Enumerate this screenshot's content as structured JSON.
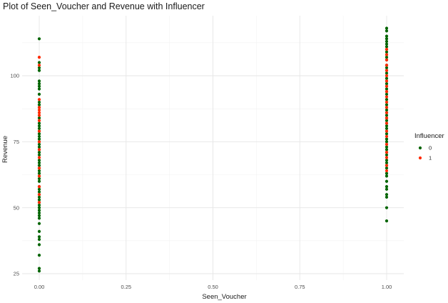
{
  "chart_data": {
    "type": "scatter",
    "title": "Plot of Seen_Voucher and Revenue with Influencer",
    "xlabel": "Seen_Voucher",
    "ylabel": "Revenue",
    "xlim": [
      0,
      1
    ],
    "ylim": [
      25,
      117
    ],
    "x_ticks": [
      "0.00",
      "0.25",
      "0.50",
      "0.75",
      "1.00"
    ],
    "y_ticks": [
      "25",
      "50",
      "75",
      "100"
    ],
    "grid": true,
    "legend": {
      "title": "Influencer",
      "position": "right"
    },
    "series": [
      {
        "name": "0",
        "color": "#006400",
        "points": [
          [
            0,
            26
          ],
          [
            0,
            27
          ],
          [
            0,
            32
          ],
          [
            0,
            36
          ],
          [
            0,
            38
          ],
          [
            0,
            39
          ],
          [
            0,
            41
          ],
          [
            0,
            44
          ],
          [
            0,
            46
          ],
          [
            0,
            47
          ],
          [
            0,
            48
          ],
          [
            0,
            49
          ],
          [
            0,
            50
          ],
          [
            0,
            51
          ],
          [
            0,
            52
          ],
          [
            0,
            53
          ],
          [
            0,
            54
          ],
          [
            0,
            55
          ],
          [
            0,
            56
          ],
          [
            0,
            57
          ],
          [
            0,
            58
          ],
          [
            0,
            60
          ],
          [
            0,
            61
          ],
          [
            0,
            62
          ],
          [
            0,
            63
          ],
          [
            0,
            64
          ],
          [
            0,
            65
          ],
          [
            0,
            66
          ],
          [
            0,
            67
          ],
          [
            0,
            68
          ],
          [
            0,
            70
          ],
          [
            0,
            71
          ],
          [
            0,
            72
          ],
          [
            0,
            73
          ],
          [
            0,
            74
          ],
          [
            0,
            75
          ],
          [
            0,
            76
          ],
          [
            0,
            77
          ],
          [
            0,
            78
          ],
          [
            0,
            79
          ],
          [
            0,
            80
          ],
          [
            0,
            81
          ],
          [
            0,
            82
          ],
          [
            0,
            84
          ],
          [
            0,
            88
          ],
          [
            0,
            89
          ],
          [
            0,
            90
          ],
          [
            0,
            93
          ],
          [
            0,
            95
          ],
          [
            0,
            96
          ],
          [
            0,
            97
          ],
          [
            0,
            98
          ],
          [
            0,
            102
          ],
          [
            0,
            103
          ],
          [
            0,
            105
          ],
          [
            0,
            114
          ],
          [
            1,
            45
          ],
          [
            1,
            50
          ],
          [
            1,
            54
          ],
          [
            1,
            55
          ],
          [
            1,
            57
          ],
          [
            1,
            58
          ],
          [
            1,
            60
          ],
          [
            1,
            62
          ],
          [
            1,
            63
          ],
          [
            1,
            65
          ],
          [
            1,
            66
          ],
          [
            1,
            67
          ],
          [
            1,
            68
          ],
          [
            1,
            70
          ],
          [
            1,
            71
          ],
          [
            1,
            72
          ],
          [
            1,
            73
          ],
          [
            1,
            74
          ],
          [
            1,
            75
          ],
          [
            1,
            76
          ],
          [
            1,
            77
          ],
          [
            1,
            78
          ],
          [
            1,
            79
          ],
          [
            1,
            80
          ],
          [
            1,
            81
          ],
          [
            1,
            82
          ],
          [
            1,
            83
          ],
          [
            1,
            84
          ],
          [
            1,
            85
          ],
          [
            1,
            86
          ],
          [
            1,
            87
          ],
          [
            1,
            88
          ],
          [
            1,
            89
          ],
          [
            1,
            90
          ],
          [
            1,
            91
          ],
          [
            1,
            93
          ],
          [
            1,
            94
          ],
          [
            1,
            95
          ],
          [
            1,
            96
          ],
          [
            1,
            97
          ],
          [
            1,
            98
          ],
          [
            1,
            99
          ],
          [
            1,
            100
          ],
          [
            1,
            101
          ],
          [
            1,
            102
          ],
          [
            1,
            103
          ],
          [
            1,
            104
          ],
          [
            1,
            106
          ],
          [
            1,
            107
          ],
          [
            1,
            108
          ],
          [
            1,
            109
          ],
          [
            1,
            110
          ],
          [
            1,
            111
          ],
          [
            1,
            112
          ],
          [
            1,
            113
          ],
          [
            1,
            114
          ],
          [
            1,
            115
          ],
          [
            1,
            117
          ],
          [
            1,
            118
          ]
        ]
      },
      {
        "name": "1",
        "color": "#ff2a00",
        "points": [
          [
            0,
            52
          ],
          [
            0,
            55
          ],
          [
            0,
            58
          ],
          [
            0,
            62
          ],
          [
            0,
            65
          ],
          [
            0,
            69
          ],
          [
            0,
            72
          ],
          [
            0,
            75
          ],
          [
            0,
            79
          ],
          [
            0,
            83
          ],
          [
            0,
            85
          ],
          [
            0,
            86
          ],
          [
            0,
            87
          ],
          [
            0,
            88
          ],
          [
            0,
            91
          ],
          [
            0,
            104
          ],
          [
            0,
            107
          ],
          [
            1,
            64
          ],
          [
            1,
            66
          ],
          [
            1,
            69
          ],
          [
            1,
            71
          ],
          [
            1,
            74
          ],
          [
            1,
            77
          ],
          [
            1,
            79
          ],
          [
            1,
            82
          ],
          [
            1,
            84
          ],
          [
            1,
            86
          ],
          [
            1,
            88
          ],
          [
            1,
            90
          ],
          [
            1,
            92
          ],
          [
            1,
            94
          ],
          [
            1,
            96
          ],
          [
            1,
            98
          ],
          [
            1,
            100
          ],
          [
            1,
            102
          ],
          [
            1,
            104
          ],
          [
            1,
            106
          ],
          [
            1,
            108
          ],
          [
            1,
            110
          ]
        ]
      }
    ]
  }
}
